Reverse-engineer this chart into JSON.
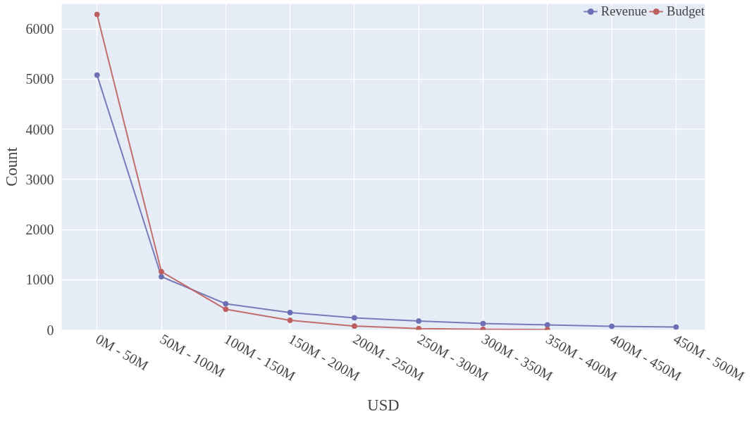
{
  "chart_data": {
    "type": "line",
    "xlabel": "USD",
    "ylabel": "Count",
    "categories": [
      "0M - 50M",
      "50M - 100M",
      "100M - 150M",
      "150M - 200M",
      "200M - 250M",
      "250M - 300M",
      "300M - 350M",
      "350M - 400M",
      "400M - 450M",
      "450M - 500M"
    ],
    "series": [
      {
        "name": "Revenue",
        "color": "#6b6fb3",
        "values": [
          5080,
          1060,
          520,
          345,
          240,
          175,
          125,
          100,
          70,
          55
        ]
      },
      {
        "name": "Budget",
        "color": "#bd5f5f",
        "values": [
          6290,
          1160,
          410,
          190,
          75,
          25,
          10,
          5,
          null,
          null
        ]
      }
    ],
    "ylim": [
      0,
      6500
    ],
    "yticks": [
      0,
      1000,
      2000,
      3000,
      4000,
      5000,
      6000
    ],
    "grid": true,
    "legend": "top right",
    "marker": "circle",
    "line_style": "solid"
  }
}
